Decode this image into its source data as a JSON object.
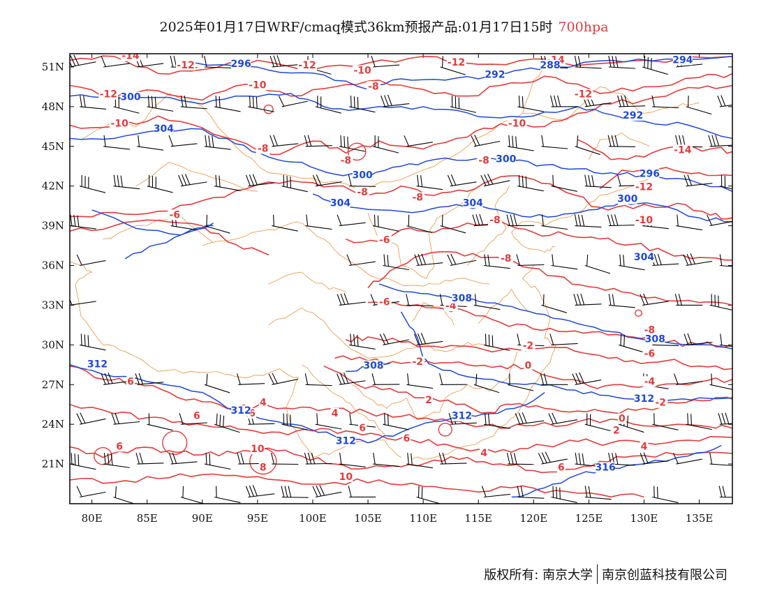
{
  "title": {
    "main": "2025年01月17日WRF/cmaq模式36km预报产品:01月17日15时",
    "level": "700hpa"
  },
  "axes": {
    "lon_ticks": [
      "80E",
      "85E",
      "90E",
      "95E",
      "100E",
      "105E",
      "110E",
      "115E",
      "120E",
      "125E",
      "130E",
      "135E"
    ],
    "lat_ticks": [
      "51N",
      "48N",
      "45N",
      "42N",
      "39N",
      "36N",
      "33N",
      "30N",
      "27N",
      "24N",
      "21N"
    ],
    "lon_values": [
      80,
      85,
      90,
      95,
      100,
      105,
      110,
      115,
      120,
      125,
      130,
      135
    ],
    "lat_values": [
      51,
      48,
      45,
      42,
      39,
      36,
      33,
      30,
      27,
      24,
      21
    ],
    "lon_range": [
      78,
      138
    ],
    "lat_range": [
      18,
      52
    ]
  },
  "colors": {
    "temperature": "#e23b3b",
    "geopotential": "#1f48d8",
    "borders": "#e8923a",
    "wind": "#000000"
  },
  "temperature_labels": [
    {
      "text": "-14",
      "lon": 83.5,
      "lat": 51.7
    },
    {
      "text": "-12",
      "lon": 88.5,
      "lat": 51.0
    },
    {
      "text": "-12",
      "lon": 99.5,
      "lat": 51.0
    },
    {
      "text": "-10",
      "lon": 95.0,
      "lat": 49.5
    },
    {
      "text": "-10",
      "lon": 104.5,
      "lat": 50.6
    },
    {
      "text": "-8",
      "lon": 105.5,
      "lat": 49.4
    },
    {
      "text": "-12",
      "lon": 113.0,
      "lat": 51.2
    },
    {
      "text": "-14",
      "lon": 122.0,
      "lat": 51.4
    },
    {
      "text": "-12",
      "lon": 81.5,
      "lat": 48.8
    },
    {
      "text": "-10",
      "lon": 82.5,
      "lat": 46.6
    },
    {
      "text": "-12",
      "lon": 124.5,
      "lat": 48.8
    },
    {
      "text": "-10",
      "lon": 118.5,
      "lat": 46.6
    },
    {
      "text": "-8",
      "lon": 95.5,
      "lat": 44.7
    },
    {
      "text": "-8",
      "lon": 103.0,
      "lat": 43.8
    },
    {
      "text": "-14",
      "lon": 133.5,
      "lat": 44.6
    },
    {
      "text": "-8",
      "lon": 115.5,
      "lat": 43.8
    },
    {
      "text": "-8",
      "lon": 104.5,
      "lat": 41.4
    },
    {
      "text": "-8",
      "lon": 109.5,
      "lat": 41.0
    },
    {
      "text": "-12",
      "lon": 130.0,
      "lat": 41.8
    },
    {
      "text": "-6",
      "lon": 87.5,
      "lat": 39.7
    },
    {
      "text": "-10",
      "lon": 130.0,
      "lat": 39.3
    },
    {
      "text": "-8",
      "lon": 116.5,
      "lat": 39.3
    },
    {
      "text": "-6",
      "lon": 106.5,
      "lat": 37.8
    },
    {
      "text": "-8",
      "lon": 117.5,
      "lat": 36.4
    },
    {
      "text": "-6",
      "lon": 106.5,
      "lat": 33.1
    },
    {
      "text": "-4",
      "lon": 112.5,
      "lat": 32.8
    },
    {
      "text": "-8",
      "lon": 130.5,
      "lat": 31.0
    },
    {
      "text": "-2",
      "lon": 119.5,
      "lat": 29.8
    },
    {
      "text": "-6",
      "lon": 130.5,
      "lat": 29.2
    },
    {
      "text": "-2",
      "lon": 109.5,
      "lat": 28.6
    },
    {
      "text": "0",
      "lon": 119.5,
      "lat": 28.3
    },
    {
      "text": "6",
      "lon": 83.5,
      "lat": 27.1
    },
    {
      "text": "-4",
      "lon": 130.5,
      "lat": 27.1
    },
    {
      "text": "4",
      "lon": 95.5,
      "lat": 25.5
    },
    {
      "text": "4",
      "lon": 102.0,
      "lat": 24.7
    },
    {
      "text": "6",
      "lon": 94.5,
      "lat": 24.7
    },
    {
      "text": "6",
      "lon": 89.5,
      "lat": 24.5
    },
    {
      "text": "2",
      "lon": 110.5,
      "lat": 25.7
    },
    {
      "text": "-2",
      "lon": 131.5,
      "lat": 25.5
    },
    {
      "text": "0",
      "lon": 128.0,
      "lat": 24.3
    },
    {
      "text": "6",
      "lon": 104.5,
      "lat": 23.6
    },
    {
      "text": "2",
      "lon": 127.5,
      "lat": 23.4
    },
    {
      "text": "6",
      "lon": 108.5,
      "lat": 22.8
    },
    {
      "text": "4",
      "lon": 115.5,
      "lat": 21.7
    },
    {
      "text": "4",
      "lon": 130.0,
      "lat": 22.2
    },
    {
      "text": "6",
      "lon": 82.5,
      "lat": 22.2
    },
    {
      "text": "10",
      "lon": 95.0,
      "lat": 22.0
    },
    {
      "text": "8",
      "lon": 95.5,
      "lat": 20.6
    },
    {
      "text": "10",
      "lon": 103.0,
      "lat": 19.9
    },
    {
      "text": "6",
      "lon": 122.5,
      "lat": 20.6
    }
  ],
  "geopotential_labels": [
    {
      "text": "296",
      "lon": 93.5,
      "lat": 51.1
    },
    {
      "text": "300",
      "lon": 83.5,
      "lat": 48.6
    },
    {
      "text": "304",
      "lon": 86.5,
      "lat": 46.2
    },
    {
      "text": "292",
      "lon": 116.5,
      "lat": 50.3
    },
    {
      "text": "288",
      "lon": 121.5,
      "lat": 51.0
    },
    {
      "text": "294",
      "lon": 133.5,
      "lat": 51.4
    },
    {
      "text": "292",
      "lon": 129.0,
      "lat": 47.2
    },
    {
      "text": "296",
      "lon": 130.5,
      "lat": 42.8
    },
    {
      "text": "300",
      "lon": 104.5,
      "lat": 42.7
    },
    {
      "text": "300",
      "lon": 117.5,
      "lat": 43.9
    },
    {
      "text": "304",
      "lon": 102.5,
      "lat": 40.6
    },
    {
      "text": "304",
      "lon": 114.5,
      "lat": 40.6
    },
    {
      "text": "300",
      "lon": 128.5,
      "lat": 40.9
    },
    {
      "text": "304",
      "lon": 130.0,
      "lat": 36.5
    },
    {
      "text": "308",
      "lon": 113.5,
      "lat": 33.4
    },
    {
      "text": "308",
      "lon": 131.0,
      "lat": 30.3
    },
    {
      "text": "312",
      "lon": 80.5,
      "lat": 28.4
    },
    {
      "text": "308",
      "lon": 105.5,
      "lat": 28.3
    },
    {
      "text": "312",
      "lon": 93.5,
      "lat": 24.9
    },
    {
      "text": "312",
      "lon": 113.5,
      "lat": 24.5
    },
    {
      "text": "312",
      "lon": 103.0,
      "lat": 22.6
    },
    {
      "text": "312",
      "lon": 130.0,
      "lat": 25.8
    },
    {
      "text": "316",
      "lon": 126.5,
      "lat": 20.6
    }
  ],
  "footer": {
    "copyright": "版权所有: 南京大学",
    "company": "南京创蓝科技有限公司"
  }
}
